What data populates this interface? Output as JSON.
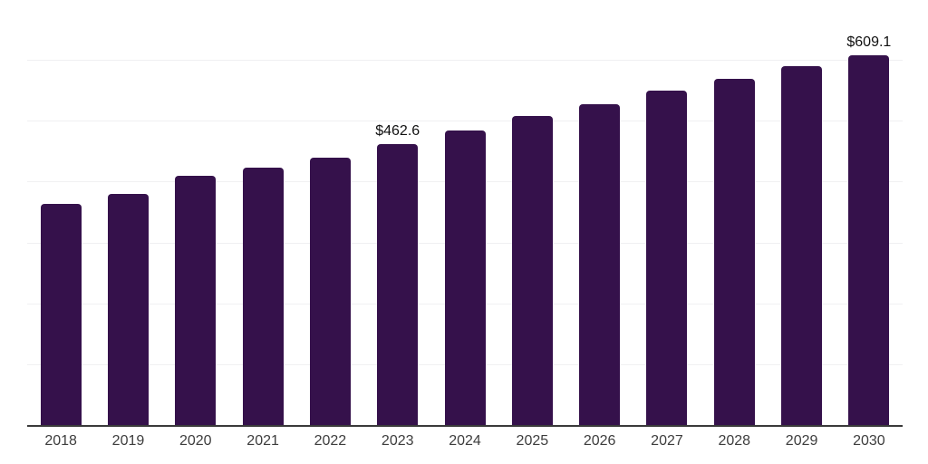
{
  "chart_data": {
    "type": "bar",
    "title": "",
    "xlabel": "",
    "ylabel": "",
    "categories": [
      "2018",
      "2019",
      "2020",
      "2021",
      "2022",
      "2023",
      "2024",
      "2025",
      "2026",
      "2027",
      "2028",
      "2029",
      "2030"
    ],
    "values": [
      364.4,
      381.5,
      411.3,
      424.7,
      440.3,
      462.6,
      486.2,
      508.9,
      529.4,
      550.6,
      569.8,
      591.0,
      609.1
    ],
    "annotations": [
      {
        "category": "2023",
        "text": "$462.6"
      },
      {
        "category": "2030",
        "text": "$609.1"
      }
    ],
    "ylim": [
      0,
      700
    ],
    "gridline_step": 100,
    "grid": true,
    "legend": false,
    "y_axis_ticks_visible": false,
    "bar_color": "#35114B",
    "grid_color": "#F0F0F2",
    "axis_line_color": "#3A3A3A",
    "tick_label_color": "#3D3D3D",
    "data_label_color": "#111111",
    "background": "#FFFFFF"
  }
}
